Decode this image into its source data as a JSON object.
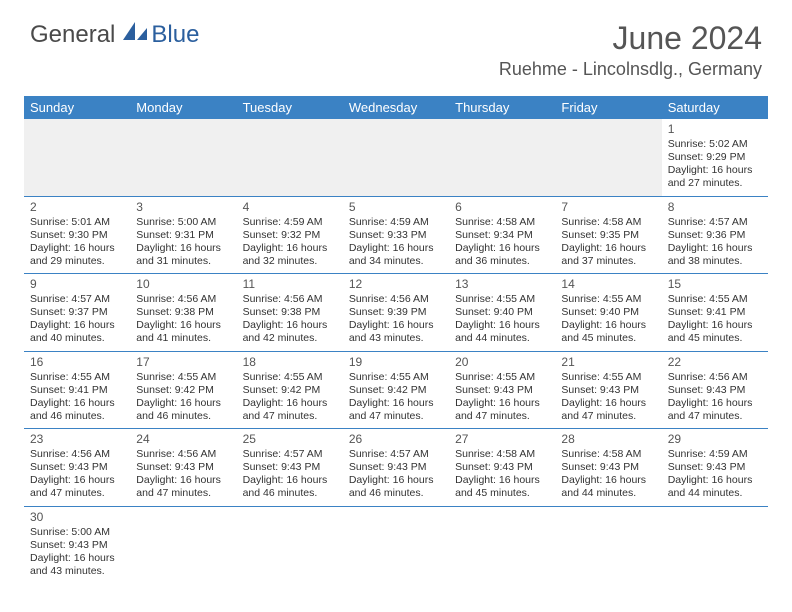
{
  "brand": {
    "part1": "General",
    "part2": "Blue"
  },
  "title": "June 2024",
  "location": "Ruehme - Lincolnsdlg., Germany",
  "colors": {
    "header_bg": "#3b82c4",
    "header_fg": "#ffffff",
    "border": "#3b82c4",
    "empty_bg": "#f0f0f0",
    "text": "#333333",
    "title_color": "#555555"
  },
  "weekdays": [
    "Sunday",
    "Monday",
    "Tuesday",
    "Wednesday",
    "Thursday",
    "Friday",
    "Saturday"
  ],
  "rows": [
    [
      null,
      null,
      null,
      null,
      null,
      null,
      {
        "n": "1",
        "sr": "5:02 AM",
        "ss": "9:29 PM",
        "dl": "16 hours and 27 minutes."
      }
    ],
    [
      {
        "n": "2",
        "sr": "5:01 AM",
        "ss": "9:30 PM",
        "dl": "16 hours and 29 minutes."
      },
      {
        "n": "3",
        "sr": "5:00 AM",
        "ss": "9:31 PM",
        "dl": "16 hours and 31 minutes."
      },
      {
        "n": "4",
        "sr": "4:59 AM",
        "ss": "9:32 PM",
        "dl": "16 hours and 32 minutes."
      },
      {
        "n": "5",
        "sr": "4:59 AM",
        "ss": "9:33 PM",
        "dl": "16 hours and 34 minutes."
      },
      {
        "n": "6",
        "sr": "4:58 AM",
        "ss": "9:34 PM",
        "dl": "16 hours and 36 minutes."
      },
      {
        "n": "7",
        "sr": "4:58 AM",
        "ss": "9:35 PM",
        "dl": "16 hours and 37 minutes."
      },
      {
        "n": "8",
        "sr": "4:57 AM",
        "ss": "9:36 PM",
        "dl": "16 hours and 38 minutes."
      }
    ],
    [
      {
        "n": "9",
        "sr": "4:57 AM",
        "ss": "9:37 PM",
        "dl": "16 hours and 40 minutes."
      },
      {
        "n": "10",
        "sr": "4:56 AM",
        "ss": "9:38 PM",
        "dl": "16 hours and 41 minutes."
      },
      {
        "n": "11",
        "sr": "4:56 AM",
        "ss": "9:38 PM",
        "dl": "16 hours and 42 minutes."
      },
      {
        "n": "12",
        "sr": "4:56 AM",
        "ss": "9:39 PM",
        "dl": "16 hours and 43 minutes."
      },
      {
        "n": "13",
        "sr": "4:55 AM",
        "ss": "9:40 PM",
        "dl": "16 hours and 44 minutes."
      },
      {
        "n": "14",
        "sr": "4:55 AM",
        "ss": "9:40 PM",
        "dl": "16 hours and 45 minutes."
      },
      {
        "n": "15",
        "sr": "4:55 AM",
        "ss": "9:41 PM",
        "dl": "16 hours and 45 minutes."
      }
    ],
    [
      {
        "n": "16",
        "sr": "4:55 AM",
        "ss": "9:41 PM",
        "dl": "16 hours and 46 minutes."
      },
      {
        "n": "17",
        "sr": "4:55 AM",
        "ss": "9:42 PM",
        "dl": "16 hours and 46 minutes."
      },
      {
        "n": "18",
        "sr": "4:55 AM",
        "ss": "9:42 PM",
        "dl": "16 hours and 47 minutes."
      },
      {
        "n": "19",
        "sr": "4:55 AM",
        "ss": "9:42 PM",
        "dl": "16 hours and 47 minutes."
      },
      {
        "n": "20",
        "sr": "4:55 AM",
        "ss": "9:43 PM",
        "dl": "16 hours and 47 minutes."
      },
      {
        "n": "21",
        "sr": "4:55 AM",
        "ss": "9:43 PM",
        "dl": "16 hours and 47 minutes."
      },
      {
        "n": "22",
        "sr": "4:56 AM",
        "ss": "9:43 PM",
        "dl": "16 hours and 47 minutes."
      }
    ],
    [
      {
        "n": "23",
        "sr": "4:56 AM",
        "ss": "9:43 PM",
        "dl": "16 hours and 47 minutes."
      },
      {
        "n": "24",
        "sr": "4:56 AM",
        "ss": "9:43 PM",
        "dl": "16 hours and 47 minutes."
      },
      {
        "n": "25",
        "sr": "4:57 AM",
        "ss": "9:43 PM",
        "dl": "16 hours and 46 minutes."
      },
      {
        "n": "26",
        "sr": "4:57 AM",
        "ss": "9:43 PM",
        "dl": "16 hours and 46 minutes."
      },
      {
        "n": "27",
        "sr": "4:58 AM",
        "ss": "9:43 PM",
        "dl": "16 hours and 45 minutes."
      },
      {
        "n": "28",
        "sr": "4:58 AM",
        "ss": "9:43 PM",
        "dl": "16 hours and 44 minutes."
      },
      {
        "n": "29",
        "sr": "4:59 AM",
        "ss": "9:43 PM",
        "dl": "16 hours and 44 minutes."
      }
    ],
    [
      {
        "n": "30",
        "sr": "5:00 AM",
        "ss": "9:43 PM",
        "dl": "16 hours and 43 minutes."
      },
      null,
      null,
      null,
      null,
      null,
      null
    ]
  ],
  "labels": {
    "sunrise": "Sunrise:",
    "sunset": "Sunset:",
    "daylight": "Daylight:"
  }
}
